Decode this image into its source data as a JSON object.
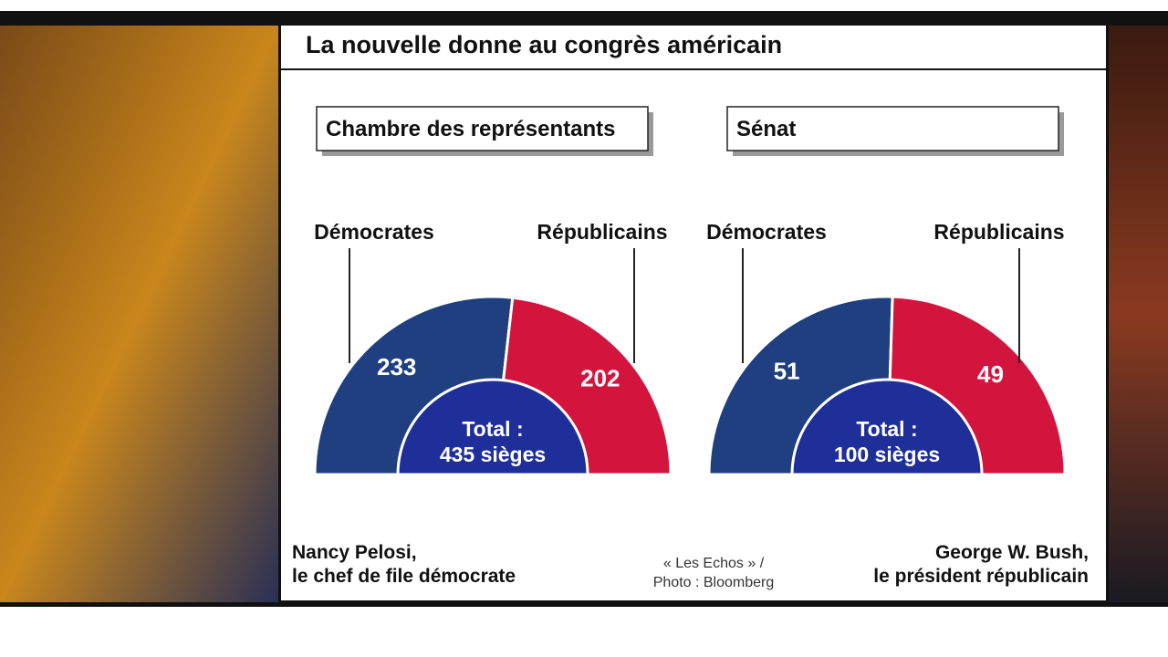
{
  "title": "La nouvelle donne au congrès américain",
  "chart_data": [
    {
      "type": "halfdonut",
      "title": "Chambre des représentants",
      "categories": [
        "Démocrates",
        "Républicains"
      ],
      "values": [
        233,
        202
      ],
      "colors": [
        "#1f3f80",
        "#d3143d"
      ],
      "center_color": "#1f2f9a",
      "total_label": [
        "Total :",
        "435 sièges"
      ]
    },
    {
      "type": "halfdonut",
      "title": "Sénat",
      "categories": [
        "Démocrates",
        "Républicains"
      ],
      "values": [
        51,
        49
      ],
      "colors": [
        "#1f3f80",
        "#d3143d"
      ],
      "center_color": "#1f2f9a",
      "total_label": [
        "Total :",
        "100 sièges"
      ]
    }
  ],
  "captions": {
    "left": [
      "Nancy Pelosi,",
      "le chef de file démocrate"
    ],
    "credit": [
      "« Les Echos » /",
      "Photo : Bloomberg"
    ],
    "right": [
      "George W. Bush,",
      "le président républicain"
    ]
  }
}
